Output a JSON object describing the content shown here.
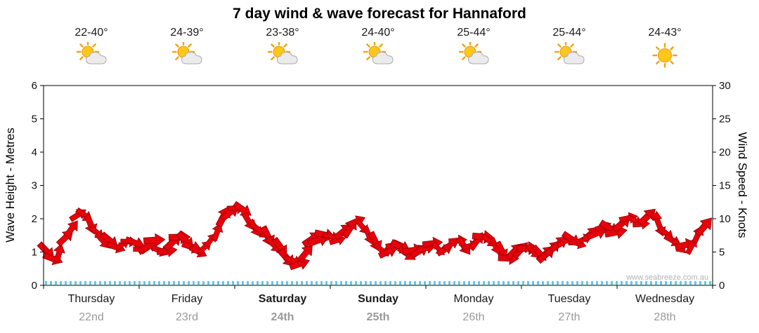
{
  "title": "7 day wind & wave forecast for Hannaford",
  "watermark": "www.seabreeze.com.au",
  "colors": {
    "wind": "#E8000B",
    "wind_outline": "#990007",
    "tide_ticks": "#53CFEA",
    "axis": "#000000",
    "date_grey": "#9A9A9A",
    "sun": "#FFC61E",
    "sun_ray": "#F2A20C",
    "cloud": "#EBEBEB"
  },
  "days": [
    {
      "name": "Thursday",
      "date": "22nd",
      "temp": "22-40°",
      "icon": "sun-behind-cloud-icon",
      "bold": false
    },
    {
      "name": "Friday",
      "date": "23rd",
      "temp": "24-39°",
      "icon": "sun-behind-cloud-icon",
      "bold": false
    },
    {
      "name": "Saturday",
      "date": "24th",
      "temp": "23-38°",
      "icon": "sun-behind-cloud-icon",
      "bold": true
    },
    {
      "name": "Sunday",
      "date": "25th",
      "temp": "24-40°",
      "icon": "sun-behind-cloud-icon",
      "bold": true
    },
    {
      "name": "Monday",
      "date": "26th",
      "temp": "25-44°",
      "icon": "sun-behind-cloud-icon",
      "bold": false
    },
    {
      "name": "Tuesday",
      "date": "27th",
      "temp": "25-44°",
      "icon": "sun-behind-cloud-icon",
      "bold": false
    },
    {
      "name": "Wednesday",
      "date": "28th",
      "temp": "24-43°",
      "icon": "sun-icon",
      "bold": false
    }
  ],
  "chart_data": {
    "type": "area",
    "title": "7 day wind & wave forecast for Hannaford",
    "left_axis": {
      "label": "Wave Height - Metres",
      "min": 0,
      "max": 6,
      "ticks": [
        "0",
        "1",
        "2",
        "3",
        "4",
        "5",
        "6"
      ]
    },
    "right_axis": {
      "label": "Wind Speed - Knots",
      "min": 0,
      "max": 30,
      "ticks": [
        "0",
        "5",
        "10",
        "15",
        "20",
        "25",
        "30"
      ]
    },
    "x_categories": [
      "Thursday 22nd",
      "Friday 23rd",
      "Saturday 24th",
      "Sunday 25th",
      "Monday 26th",
      "Tuesday 27th",
      "Wednesday 28th"
    ],
    "points_per_day": 8,
    "grid": false,
    "legend": false,
    "series": [
      {
        "name": "Wind Speed",
        "unit": "knots",
        "color": "#E8000B",
        "values": [
          5.5,
          3.5,
          8,
          11,
          8.5,
          7,
          6,
          7,
          5.5,
          6.5,
          5,
          7,
          6,
          5,
          7.5,
          10.5,
          12,
          9.5,
          8,
          6,
          4.5,
          3.5,
          6.5,
          7.5,
          6.5,
          8.5,
          10,
          6.5,
          5,
          6,
          4.5,
          5.5,
          6,
          5,
          7,
          5.5,
          7.5,
          6.5,
          4,
          5,
          6,
          4,
          5.5,
          7,
          6,
          7.5,
          9,
          8,
          10,
          9,
          10.5,
          8,
          6.5,
          5.5,
          8,
          10
        ]
      }
    ]
  }
}
